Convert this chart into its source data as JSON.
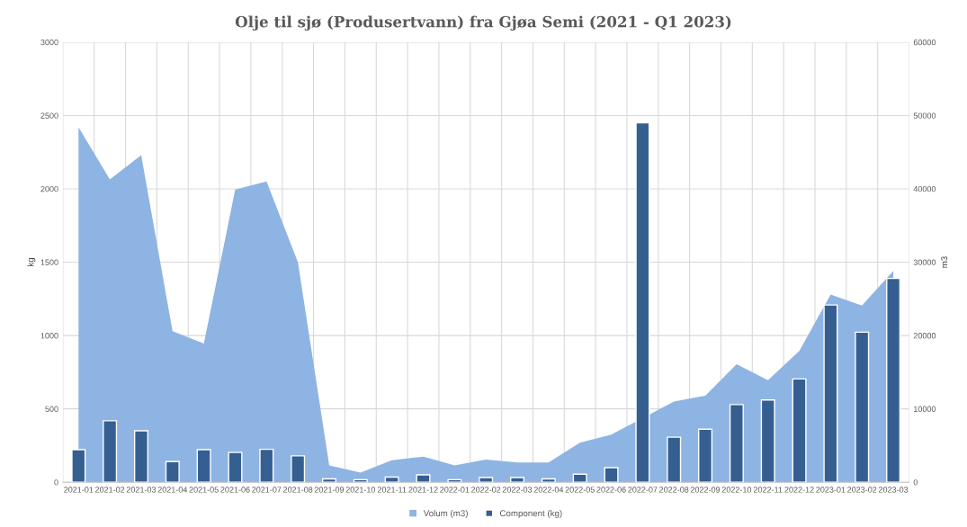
{
  "chart_data": {
    "type": "bar",
    "title": "Olje til sjø (Produsertvann) fra Gjøa Semi (2021 - Q1 2023)",
    "ylabel": "kg",
    "y2label": "m3",
    "categories": [
      "2021-01",
      "2021-02",
      "2021-03",
      "2021-04",
      "2021-05",
      "2021-06",
      "2021-07",
      "2021-08",
      "2021-09",
      "2021-10",
      "2021-11",
      "2021-12",
      "2022-01",
      "2022-02",
      "2022-03",
      "2022-04",
      "2022-05",
      "2022-06",
      "2022-07",
      "2022-08",
      "2022-09",
      "2022-10",
      "2022-11",
      "2022-12",
      "2023-01",
      "2023-02",
      "2023-03"
    ],
    "series": [
      {
        "name": "Volum (m3)",
        "type": "area",
        "axis": "y2",
        "color": "#8eb4e3",
        "values": [
          48400,
          41300,
          44600,
          20600,
          18900,
          39900,
          41000,
          30000,
          2300,
          1300,
          3000,
          3500,
          2300,
          3100,
          2700,
          2700,
          5400,
          6500,
          null,
          11000,
          11800,
          16100,
          13900,
          17900,
          25600,
          24100,
          28800
        ]
      },
      {
        "name": "Component (kg)",
        "color": "#355f91",
        "values": [
          222,
          419,
          351,
          141,
          222,
          203,
          224,
          180,
          23,
          17,
          35,
          50,
          17,
          32,
          32,
          23,
          55,
          99,
          2450,
          307,
          361,
          529,
          561,
          704,
          1208,
          1023,
          1389
        ]
      }
    ],
    "ylim": [
      0,
      3000
    ],
    "yticks": [
      0,
      500,
      1000,
      1500,
      2000,
      2500,
      3000
    ],
    "y2lim": [
      0,
      60000
    ],
    "y2ticks": [
      0,
      10000,
      20000,
      30000,
      40000,
      50000,
      60000
    ],
    "grid": true,
    "legend": "bottom"
  }
}
